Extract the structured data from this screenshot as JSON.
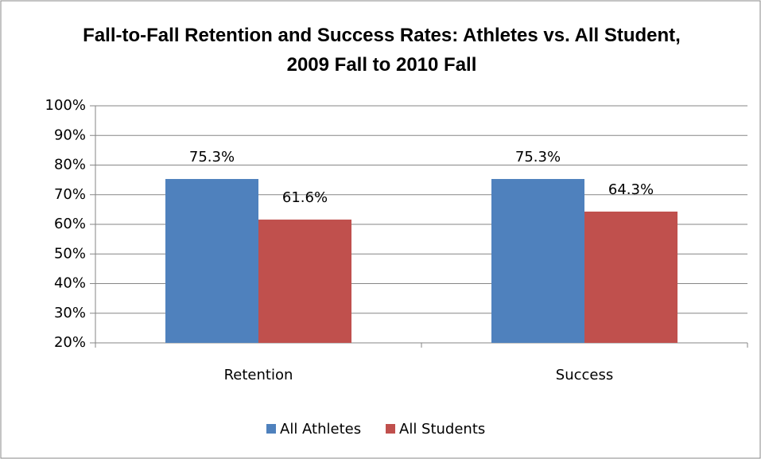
{
  "chart_data": {
    "type": "bar",
    "title": "Fall-to-Fall Retention and Success Rates: Athletes vs. All Student, 2009 Fall to 2010 Fall",
    "categories": [
      "Retention",
      "Success"
    ],
    "series": [
      {
        "name": "All Athletes",
        "color": "#4f81bd",
        "values": [
          75.3,
          75.3
        ],
        "value_labels": [
          "75.3%",
          "75.3%"
        ]
      },
      {
        "name": "All Students",
        "color": "#c0504d",
        "values": [
          61.6,
          64.3
        ],
        "value_labels": [
          "61.6%",
          "64.3%"
        ]
      }
    ],
    "ylim": [
      20,
      100
    ],
    "yticks": [
      {
        "value": 20,
        "label": "20%"
      },
      {
        "value": 30,
        "label": "30%"
      },
      {
        "value": 40,
        "label": "40%"
      },
      {
        "value": 50,
        "label": "50%"
      },
      {
        "value": 60,
        "label": "60%"
      },
      {
        "value": 70,
        "label": "70%"
      },
      {
        "value": 80,
        "label": "80%"
      },
      {
        "value": 90,
        "label": "90%"
      },
      {
        "value": 100,
        "label": "100%"
      }
    ],
    "grid": true,
    "legend": "bottom"
  }
}
